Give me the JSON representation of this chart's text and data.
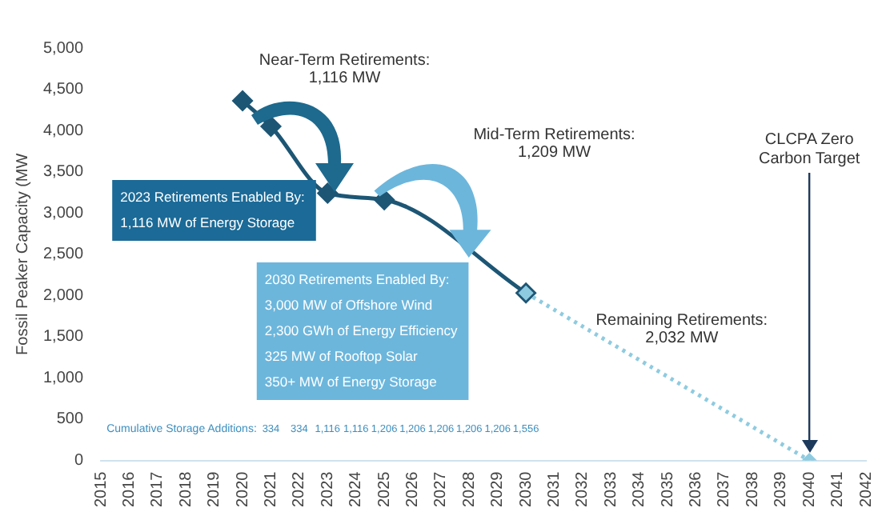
{
  "chart_data": {
    "type": "line",
    "ylabel": "Fossil Peaker Capacity (MW",
    "series": [
      {
        "color": "#1d5675",
        "x": [
          2020,
          2021,
          2023,
          2025,
          2030
        ],
        "values": [
          4360,
          4050,
          3240,
          3160,
          2030
        ],
        "line_style": "solid"
      },
      {
        "color": "#8ecbe0",
        "x": [
          2030,
          2040
        ],
        "values": [
          2030,
          0
        ],
        "line_style": "dotted"
      }
    ],
    "marker": "diamond",
    "xlim": [
      2015,
      2042
    ],
    "xticks": [
      2015,
      2016,
      2017,
      2018,
      2019,
      2020,
      2021,
      2022,
      2023,
      2024,
      2025,
      2026,
      2027,
      2028,
      2029,
      2030,
      2031,
      2032,
      2033,
      2034,
      2035,
      2036,
      2037,
      2038,
      2039,
      2040,
      2041,
      2042
    ],
    "ylim": [
      0,
      5000
    ],
    "yticks": [
      0,
      500,
      {
        "value": 1000,
        "label": "1,000"
      },
      {
        "value": 1500,
        "label": "1,500"
      },
      {
        "value": 2000,
        "label": "2,000"
      },
      {
        "value": 2500,
        "label": "2,500"
      },
      {
        "value": 3000,
        "label": "3,000"
      },
      {
        "value": 3500,
        "label": "3,500"
      },
      {
        "value": 4000,
        "label": "4,000"
      },
      {
        "value": 4500,
        "label": "4,500"
      },
      {
        "value": 5000,
        "label": "5,000"
      }
    ],
    "legend": false,
    "ref_lines": [
      {
        "axis": "x",
        "value": 2040,
        "label": "CLCPA Zero\nCarbon Target",
        "color": "#1d3a5c"
      }
    ],
    "annotations": [
      "Near-Term Retirements:\n1,116 MW",
      "Mid-Term Retirements:\n1,209 MW",
      "Remaining Retirements:\n2,032 MW",
      "2023 Retirements Enabled By:\n1,116 MW of Energy Storage",
      "2030 Retirements Enabled By:\n3,000 MW of Offshore Wind\n2,300 GWh of Energy Efficiency\n325 MW of Rooftop Solar\n350+ MW of Energy Storage",
      "Cumulative Storage Additions:",
      "334",
      "334",
      "1,116",
      "1,116",
      "1,206",
      "1,206",
      "1,206",
      "1,206",
      "1,206",
      "1,556"
    ]
  }
}
